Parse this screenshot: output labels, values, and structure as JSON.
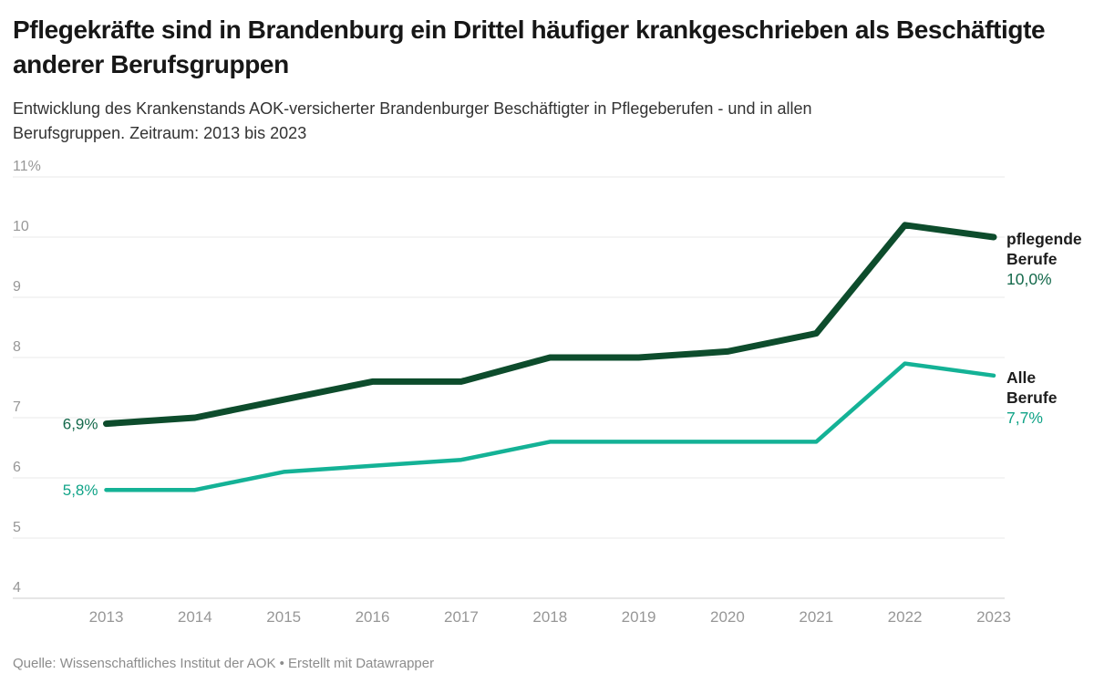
{
  "header": {
    "title": "Pflegekräfte sind in Brandenburg ein Drittel häufiger krankgeschrieben als Beschäftigte anderer Berufsgruppen",
    "subtitle": "Entwicklung des Krankenstands AOK-versicherter Brandenburger Beschäftigter in Pflegeberufen - und in allen Berufsgruppen. Zeitraum: 2013 bis 2023"
  },
  "footer": {
    "text": "Quelle: Wissenschaftliches Institut der AOK • Erstellt mit Datawrapper"
  },
  "colors": {
    "background": "#ffffff",
    "title_text": "#171717",
    "subtitle_text": "#333333",
    "grid": "#e8e8e8",
    "baseline": "#cccccc",
    "axis_text": "#979797",
    "annotation_name_text": "#1d1d1d",
    "dark_green": "#0d4c2c",
    "teal": "#14b296"
  },
  "chart_data": {
    "type": "line",
    "title": "Pflegekräfte sind in Brandenburg ein Drittel häufiger krankgeschrieben als Beschäftigte anderer Berufsgruppen",
    "subtitle": "Entwicklung des Krankenstands AOK-versicherter Brandenburger Beschäftigter in Pflegeberufen - und in allen Berufsgruppen. Zeitraum: 2013 bis 2023",
    "xlabel": "",
    "ylabel": "",
    "x": [
      "2013",
      "2014",
      "2015",
      "2016",
      "2017",
      "2018",
      "2019",
      "2020",
      "2021",
      "2022",
      "2023"
    ],
    "ylim": [
      4,
      11
    ],
    "yticks": [
      {
        "value": 4,
        "label": "4"
      },
      {
        "value": 5,
        "label": "5"
      },
      {
        "value": 6,
        "label": "6"
      },
      {
        "value": 7,
        "label": "7"
      },
      {
        "value": 8,
        "label": "8"
      },
      {
        "value": 9,
        "label": "9"
      },
      {
        "value": 10,
        "label": "10"
      },
      {
        "value": 11,
        "label": "11%"
      }
    ],
    "grid": "horizontal",
    "legend_position": "line-end-labels",
    "series": [
      {
        "name": "pflegende Berufe",
        "name_lines": [
          "pflegende",
          "Berufe"
        ],
        "color": "#0d4c2c",
        "label_color": "#14694b",
        "stroke_width": 7,
        "values": [
          6.9,
          7.0,
          7.3,
          7.6,
          7.6,
          8.0,
          8.0,
          8.1,
          8.4,
          10.2,
          10.0
        ],
        "start_label": "6,9%",
        "end_label": "10,0%"
      },
      {
        "name": "Alle Berufe",
        "name_lines": [
          "Alle",
          "Berufe"
        ],
        "color": "#14b296",
        "label_color": "#10a387",
        "stroke_width": 4.5,
        "values": [
          5.8,
          5.8,
          6.1,
          6.2,
          6.3,
          6.6,
          6.6,
          6.6,
          6.6,
          7.9,
          7.7
        ],
        "start_label": "5,8%",
        "end_label": "7,7%"
      }
    ]
  }
}
